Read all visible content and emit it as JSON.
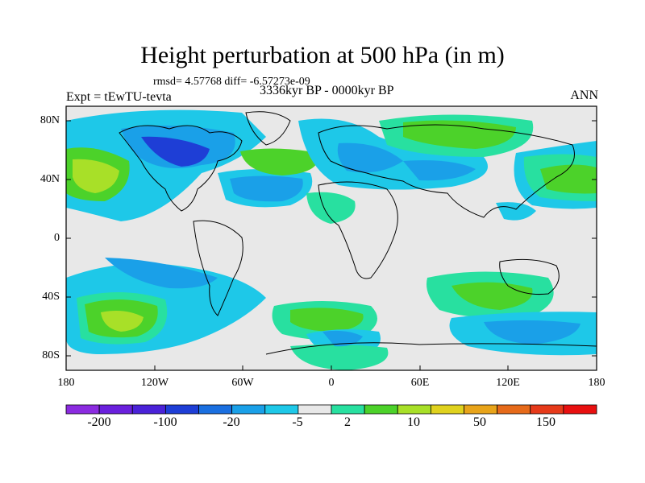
{
  "title": "Height perturbation at 500 hPa (in m)",
  "stats_line": "rmsd= 4.57768 diff= -6.57273e-09",
  "experiment_label": "Expt = tEwTU-tevta",
  "period_label": "3336kyr BP - 0000kyr BP",
  "season_label": "ANN",
  "lat_ticks": [
    "80N",
    "40N",
    "0",
    "40S",
    "80S"
  ],
  "lon_ticks": [
    "180",
    "120W",
    "60W",
    "0",
    "60E",
    "120E",
    "180"
  ],
  "colorbar": {
    "colors": [
      "#8b2be0",
      "#6a20dd",
      "#4a22d8",
      "#1e3ed6",
      "#1a6fe0",
      "#1aa0e8",
      "#1ec8e8",
      "#e8e8e8",
      "#28e0a0",
      "#4cd22a",
      "#a8e028",
      "#e0d21e",
      "#e8a41a",
      "#e66a1a",
      "#e63a1a",
      "#e81010"
    ],
    "labels": [
      "-200",
      "-100",
      "-20",
      "-5",
      "2",
      "10",
      "50",
      "150"
    ]
  },
  "field_colors": {
    "background": "#e8e8e8",
    "light_blue": "#1ec8e8",
    "blue": "#1aa0e8",
    "dark_blue": "#1e3ed6",
    "mint": "#28e0a0",
    "green": "#4cd22a",
    "yellow_green": "#a8e028"
  }
}
